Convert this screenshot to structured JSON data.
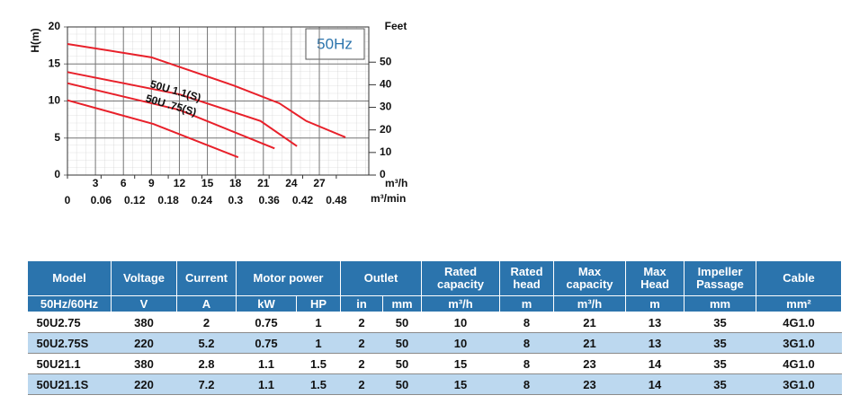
{
  "chart_data": {
    "type": "line",
    "title": "50Hz",
    "y_label": "H(m)",
    "y2_label": "Feet",
    "x_label": "m³/h",
    "x2_label": "m³/min",
    "xlim": [
      0,
      32.3
    ],
    "xticks": [
      0,
      3,
      6,
      9,
      12,
      15,
      18,
      21,
      24,
      27
    ],
    "x2lim": [
      0,
      0.538
    ],
    "x2ticks": [
      0,
      0.06,
      0.12,
      0.18,
      0.24,
      0.3,
      0.36,
      0.42,
      0.48
    ],
    "ylim": [
      0,
      20
    ],
    "yticks": [
      0,
      5,
      10,
      15,
      20
    ],
    "y2lim": [
      0,
      65.6
    ],
    "y2ticks": [
      0,
      10,
      20,
      30,
      40,
      50
    ],
    "grid": true,
    "annotations": [
      "50U 1.1(S)",
      "50U .75(S)"
    ],
    "series": [
      {
        "color": "#e8202a",
        "x": [
          0,
          9,
          17.8,
          22.7,
          25.6,
          29.8
        ],
        "values": [
          17.7,
          15.9,
          12.1,
          9.7,
          7.3,
          5.1
        ]
      },
      {
        "color": "#e8202a",
        "x": [
          0,
          12,
          20.7,
          24.6
        ],
        "values": [
          13.9,
          10.9,
          7.3,
          3.9
        ]
      },
      {
        "color": "#e8202a",
        "x": [
          0,
          12,
          22.2
        ],
        "values": [
          12.4,
          8.8,
          3.6
        ]
      },
      {
        "color": "#e8202a",
        "x": [
          0,
          9.2,
          18.3
        ],
        "values": [
          10.1,
          6.9,
          2.4
        ]
      }
    ]
  },
  "table": {
    "header_row1": [
      "Model",
      "Voltage",
      "Current",
      "Motor power",
      "Outlet",
      "Rated capacity",
      "Rated head",
      "Max capacity",
      "Max Head",
      "Impeller Passage",
      "Cable"
    ],
    "header_row2": [
      "50Hz/60Hz",
      "V",
      "A",
      "kW",
      "HP",
      "in",
      "mm",
      "m³/h",
      "m",
      "m³/h",
      "m",
      "mm",
      "mm²"
    ],
    "rows": [
      [
        "50U2.75",
        "380",
        "2",
        "0.75",
        "1",
        "2",
        "50",
        "10",
        "8",
        "21",
        "13",
        "35",
        "4G1.0"
      ],
      [
        "50U2.75S",
        "220",
        "5.2",
        "0.75",
        "1",
        "2",
        "50",
        "10",
        "8",
        "21",
        "13",
        "35",
        "3G1.0"
      ],
      [
        "50U21.1",
        "380",
        "2.8",
        "1.1",
        "1.5",
        "2",
        "50",
        "15",
        "8",
        "23",
        "14",
        "35",
        "4G1.0"
      ],
      [
        "50U21.1S",
        "220",
        "7.2",
        "1.1",
        "1.5",
        "2",
        "50",
        "15",
        "8",
        "23",
        "14",
        "35",
        "3G1.0"
      ]
    ]
  }
}
